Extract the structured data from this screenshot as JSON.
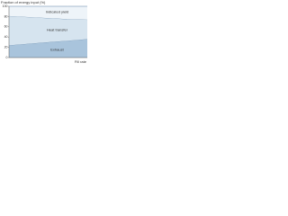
{
  "chart_data": {
    "type": "area",
    "stacked": true,
    "title": "Fraction of energy input (%)",
    "x_label": "Fill rate",
    "x": [
      0,
      0.25,
      0.5,
      0.75,
      1
    ],
    "xlim": [
      0,
      1
    ],
    "series": [
      {
        "name": "Exhaust",
        "color": "#a9c4dc",
        "values": [
          24,
          27,
          30,
          33,
          36
        ]
      },
      {
        "name": "Heat transfer",
        "color": "#d6e4ef",
        "values": [
          57,
          52,
          47,
          42,
          38
        ]
      },
      {
        "name": "Indicated yield",
        "color": "#eef4f9",
        "values": [
          19,
          21,
          23,
          25,
          26
        ]
      }
    ],
    "ylim": [
      0,
      100
    ],
    "yticks": [
      0,
      20,
      40,
      60,
      80,
      100
    ],
    "grid": false
  }
}
